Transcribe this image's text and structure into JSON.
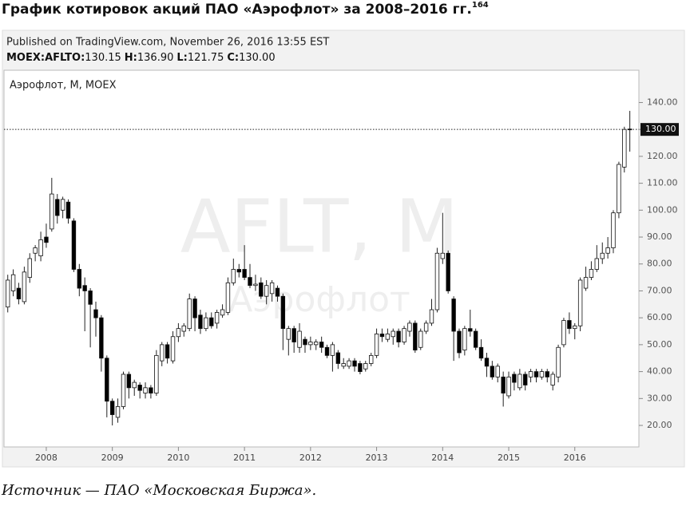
{
  "heading": {
    "title": "График котировок акций ПАО «Аэрофлот» за 2008–2016 гг.",
    "footnote": "164"
  },
  "source": "Источник — ПАО «Московская Биржа».",
  "chart_data": {
    "type": "candlestick",
    "published": "Published on TradingView.com, November 26, 2016 13:55 EST",
    "ohlc_labels": [
      "MOEX:AFLTO:",
      "H:",
      "L:",
      "C:"
    ],
    "ohlc_values": [
      "130.15",
      "136.90",
      "121.75",
      "130.00"
    ],
    "legend": "Аэрофлот, M, MOEX",
    "watermark": [
      "AFLT, M",
      "Аэрофлот"
    ],
    "up_color": "#ffffff",
    "down_color": "#000000",
    "last_price": {
      "value": 130,
      "label": "130.00"
    },
    "xlim": [
      2007.36,
      2016.97
    ],
    "xticks": [
      2008,
      2009,
      2010,
      2011,
      2012,
      2013,
      2014,
      2015,
      2016
    ],
    "ylim": [
      12,
      152
    ],
    "yticks": [
      {
        "value": 20,
        "label": "20.00"
      },
      {
        "value": 30,
        "label": "30.00"
      },
      {
        "value": 40,
        "label": "40.00"
      },
      {
        "value": 50,
        "label": "50.00"
      },
      {
        "value": 60,
        "label": "60.00"
      },
      {
        "value": 70,
        "label": "70.00"
      },
      {
        "value": 80,
        "label": "80.00"
      },
      {
        "value": 90,
        "label": "90.00"
      },
      {
        "value": 100,
        "label": "100.00"
      },
      {
        "value": 110,
        "label": "110.00"
      },
      {
        "value": 120,
        "label": "120.00"
      },
      {
        "value": 130,
        "label": "130.00"
      },
      {
        "value": 140,
        "label": "140.00"
      }
    ],
    "x": [
      2007.417,
      2007.5,
      2007.583,
      2007.667,
      2007.75,
      2007.833,
      2007.917,
      2008,
      2008.083,
      2008.167,
      2008.25,
      2008.333,
      2008.417,
      2008.5,
      2008.583,
      2008.667,
      2008.75,
      2008.833,
      2008.917,
      2009,
      2009.083,
      2009.167,
      2009.25,
      2009.333,
      2009.417,
      2009.5,
      2009.583,
      2009.667,
      2009.75,
      2009.833,
      2009.917,
      2010,
      2010.083,
      2010.167,
      2010.25,
      2010.333,
      2010.417,
      2010.5,
      2010.583,
      2010.667,
      2010.75,
      2010.833,
      2010.917,
      2011,
      2011.083,
      2011.167,
      2011.25,
      2011.333,
      2011.417,
      2011.5,
      2011.583,
      2011.667,
      2011.75,
      2011.833,
      2011.917,
      2012,
      2012.083,
      2012.167,
      2012.25,
      2012.333,
      2012.417,
      2012.5,
      2012.583,
      2012.667,
      2012.75,
      2012.833,
      2012.917,
      2013,
      2013.083,
      2013.167,
      2013.25,
      2013.333,
      2013.417,
      2013.5,
      2013.583,
      2013.667,
      2013.75,
      2013.833,
      2013.917,
      2014,
      2014.083,
      2014.167,
      2014.25,
      2014.333,
      2014.417,
      2014.5,
      2014.583,
      2014.667,
      2014.75,
      2014.833,
      2014.917,
      2015,
      2015.083,
      2015.167,
      2015.25,
      2015.333,
      2015.417,
      2015.5,
      2015.583,
      2015.667,
      2015.75,
      2015.833,
      2015.917,
      2016,
      2016.083,
      2016.167,
      2016.25,
      2016.333,
      2016.417,
      2016.5,
      2016.583,
      2016.667,
      2016.75,
      2016.833
    ],
    "open": [
      64,
      70,
      71,
      66,
      75,
      84,
      83,
      90,
      93,
      104,
      100,
      103,
      96,
      78,
      72,
      70,
      63,
      60,
      45,
      29,
      23,
      27,
      39,
      34,
      35,
      32,
      34,
      32,
      44,
      50,
      44,
      53,
      55,
      56,
      67,
      61,
      56,
      60,
      58,
      61,
      62,
      73,
      78,
      78,
      75,
      72,
      73,
      68,
      69,
      71,
      68,
      52,
      56,
      49,
      52,
      50,
      50,
      51,
      49,
      46,
      47,
      42,
      42,
      44,
      43,
      41,
      43,
      46,
      54,
      52,
      53,
      55,
      51,
      55,
      58,
      49,
      55,
      58,
      63,
      82,
      84,
      67,
      55,
      48,
      56,
      55,
      49,
      45,
      42,
      38,
      38,
      31,
      39,
      34,
      39,
      38,
      40,
      38,
      40,
      35,
      38,
      50,
      59,
      56,
      57,
      71,
      75,
      78,
      82,
      84,
      86,
      99,
      116,
      130.15
    ],
    "high": [
      76,
      78,
      73,
      79,
      84,
      87,
      92,
      95,
      112,
      106,
      105,
      104,
      97,
      80,
      75,
      71,
      66,
      61,
      46,
      30,
      30,
      40,
      40,
      37,
      36,
      36,
      35,
      48,
      51,
      51,
      55,
      58,
      58,
      69,
      68,
      63,
      62,
      62,
      63,
      65,
      75,
      82,
      80,
      87,
      80,
      76,
      75,
      74,
      74,
      72,
      69,
      57,
      57,
      58,
      53,
      53,
      52,
      53,
      50,
      51,
      48,
      45,
      45,
      45,
      44,
      44,
      47,
      56,
      56,
      56,
      56,
      56,
      57,
      59,
      59,
      56,
      59,
      67,
      86,
      99,
      85,
      68,
      56,
      57,
      63,
      56,
      52,
      47,
      44,
      43,
      40,
      40,
      40,
      41,
      40,
      41,
      41,
      41,
      41,
      40,
      50,
      60,
      62,
      58,
      75,
      79,
      81,
      87,
      88,
      90,
      100,
      118,
      131,
      136.9
    ],
    "low": [
      62,
      68,
      65,
      65,
      73,
      81,
      81,
      86,
      92,
      95,
      97,
      95,
      77,
      68,
      55,
      49,
      53,
      40,
      23,
      20,
      21,
      26,
      30,
      31,
      30,
      30,
      30,
      31,
      42,
      43,
      43,
      51,
      53,
      55,
      55,
      54,
      55,
      56,
      56,
      60,
      61,
      72,
      75,
      74,
      71,
      70,
      67,
      65,
      66,
      66,
      48,
      46,
      47,
      47,
      47,
      48,
      48,
      47,
      45,
      40,
      41,
      41,
      41,
      40,
      39,
      40,
      42,
      45,
      51,
      51,
      50,
      49,
      50,
      53,
      47,
      48,
      54,
      57,
      62,
      80,
      69,
      44,
      45,
      46,
      53,
      48,
      44,
      38,
      37,
      36,
      27,
      30,
      33,
      33,
      33,
      36,
      36,
      37,
      36,
      33,
      36,
      49,
      54,
      52,
      55,
      70,
      74,
      77,
      80,
      82,
      84,
      97,
      114,
      121.75
    ],
    "close": [
      74,
      76,
      67,
      77,
      82,
      86,
      89,
      88,
      106,
      98,
      104,
      97,
      78,
      71,
      70,
      65,
      60,
      45,
      29,
      24,
      27,
      39,
      34,
      36,
      33,
      34,
      32,
      46,
      50,
      45,
      53,
      56,
      57,
      67,
      60,
      56,
      60,
      57,
      62,
      63,
      73,
      78,
      77,
      75,
      72,
      72.5,
      68,
      72,
      73,
      68,
      56,
      56,
      51,
      55,
      50,
      51,
      51,
      49,
      46,
      50,
      43,
      43,
      44,
      42,
      40,
      43,
      46,
      54,
      53,
      54,
      55,
      51,
      56,
      58,
      48,
      55,
      58,
      63,
      84,
      84,
      70,
      55,
      47,
      56,
      55,
      49,
      45,
      42,
      38,
      42,
      32,
      38,
      36,
      39,
      35,
      40,
      38,
      40,
      38,
      39,
      49,
      59,
      56,
      57,
      74,
      75,
      78,
      82,
      84,
      86,
      99,
      117,
      130,
      130
    ]
  }
}
